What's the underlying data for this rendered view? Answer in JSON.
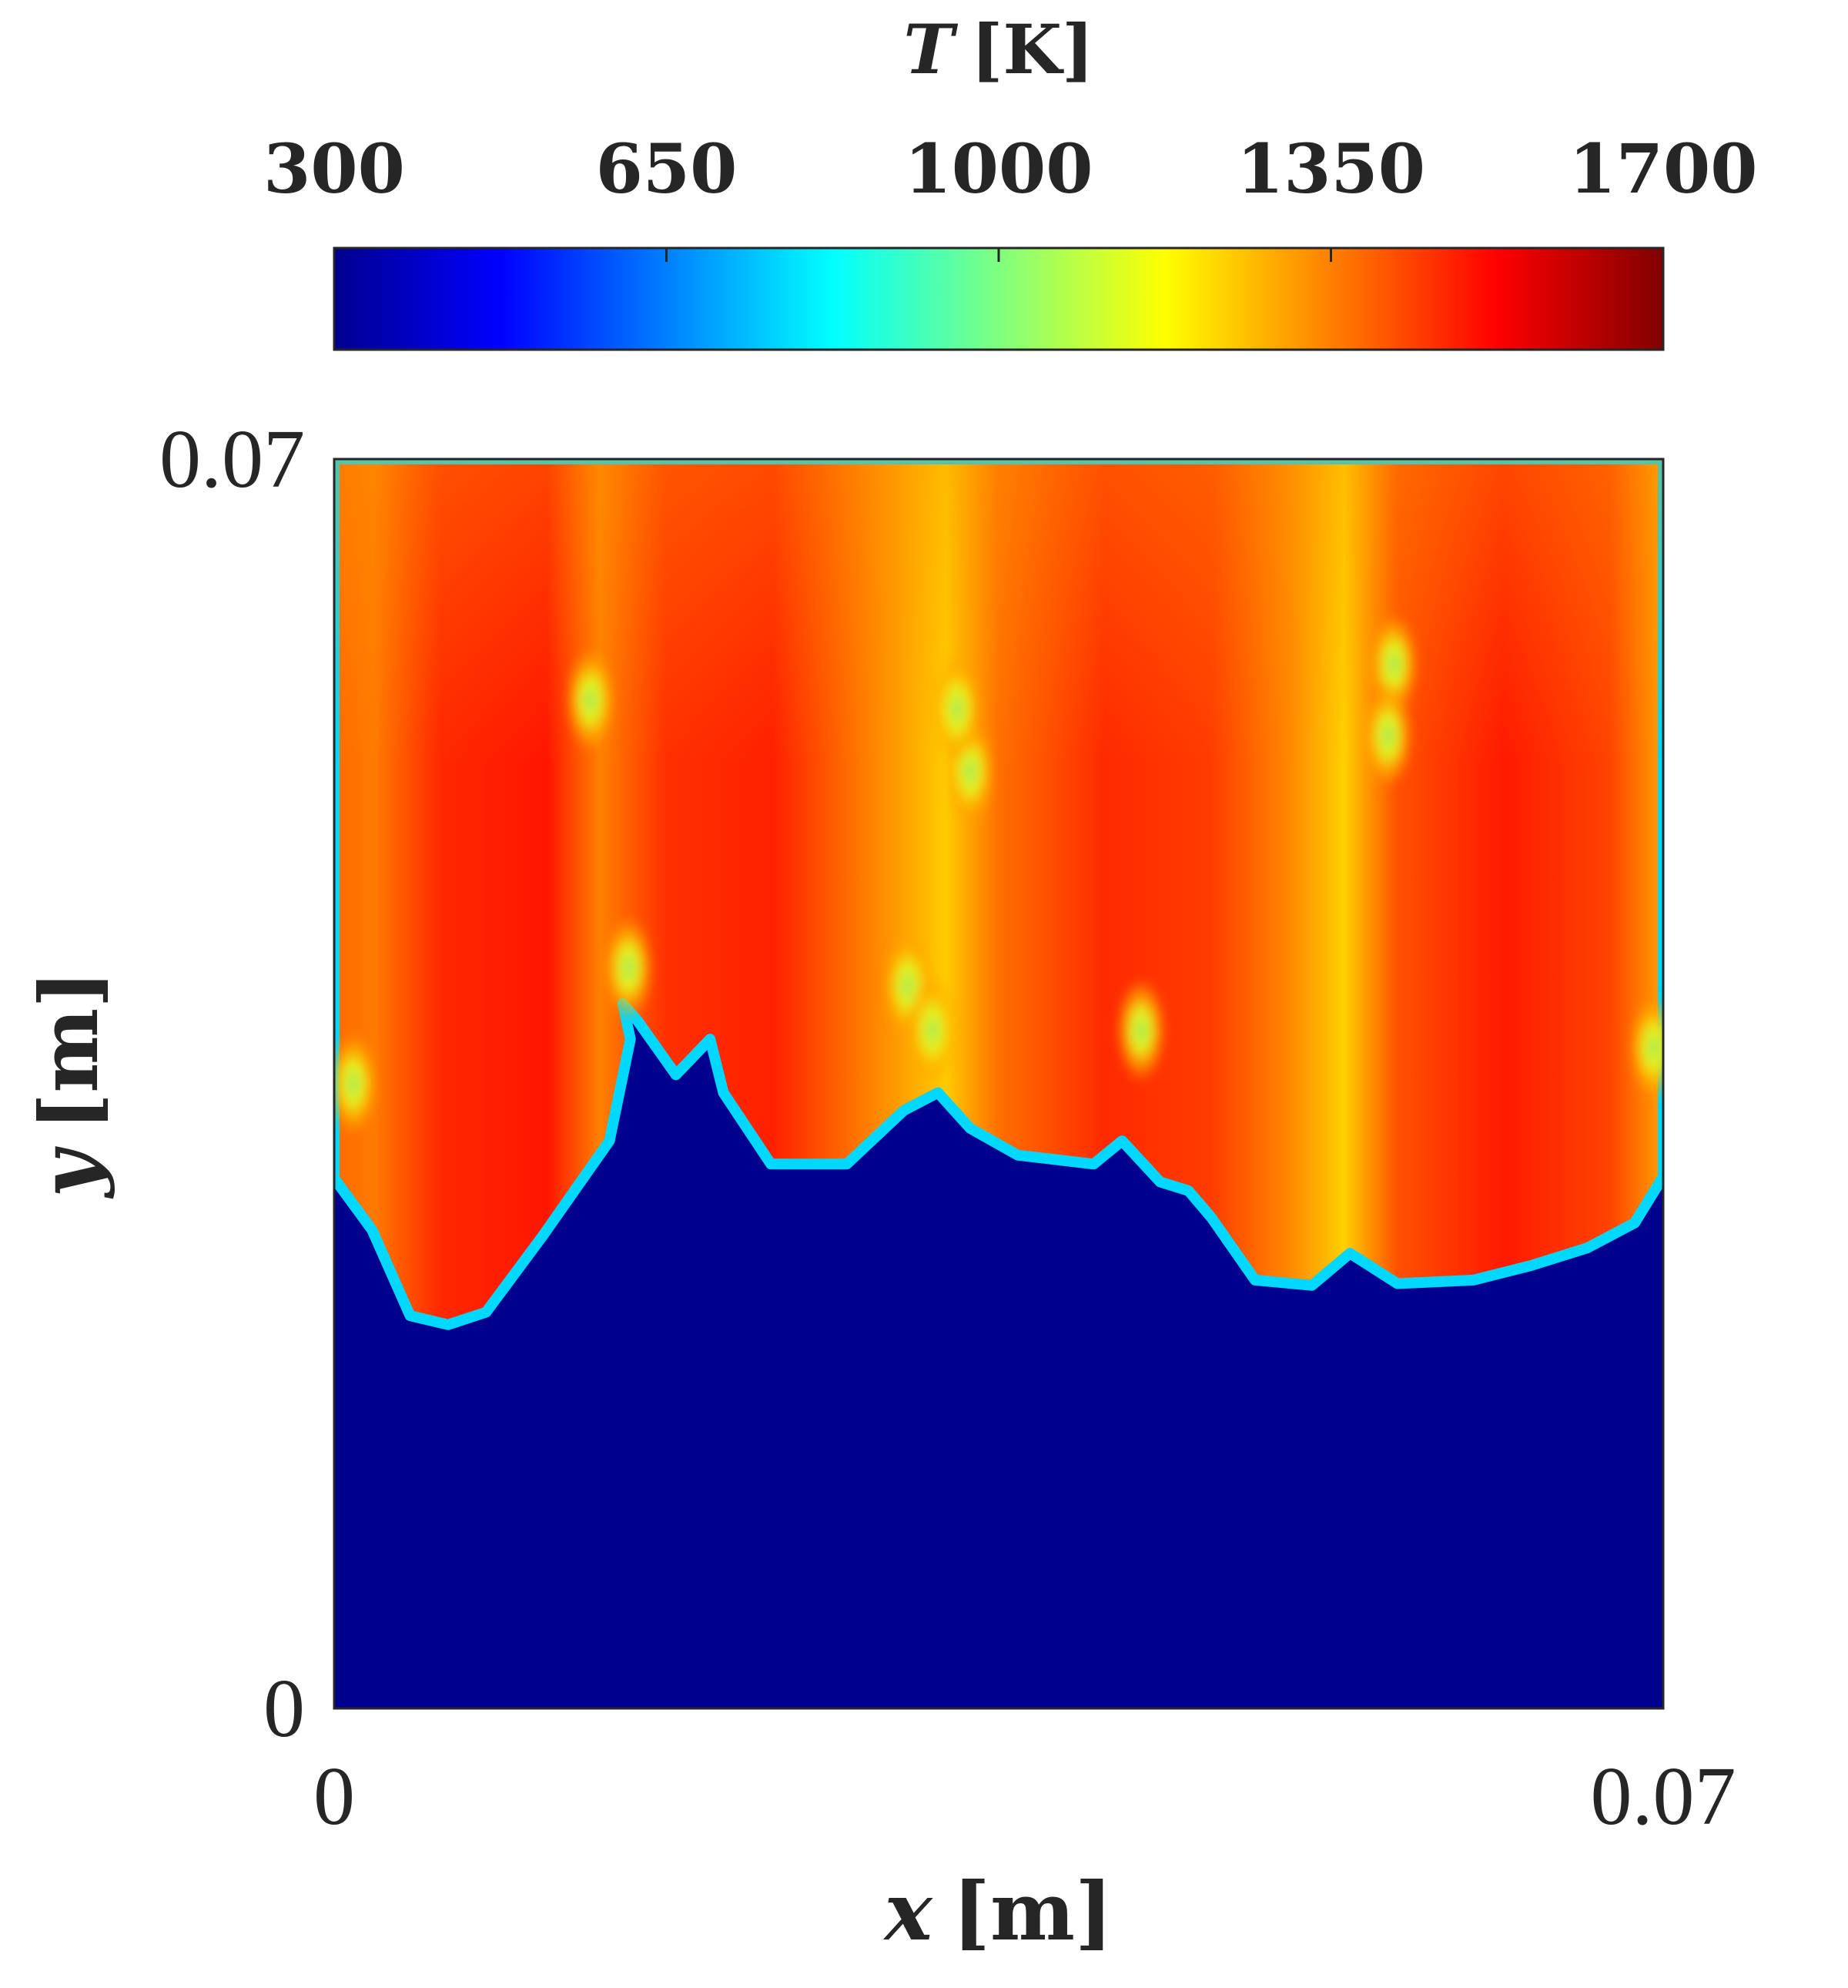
{
  "chart_data": {
    "type": "heatmap",
    "colormap": "jet",
    "colorbar": {
      "title_var": "T",
      "title_unit": "[K]",
      "range": [
        300,
        1700
      ],
      "ticks": [
        "300",
        "650",
        "1000",
        "1350",
        "1700"
      ],
      "placement": "top"
    },
    "x_axis": {
      "label_var": "x",
      "label_unit": "[m]",
      "range": [
        0,
        0.07
      ],
      "ticks": [
        "0",
        "0.07"
      ]
    },
    "y_axis": {
      "label_var": "y",
      "label_unit": "[m]",
      "range": [
        0,
        0.07
      ],
      "ticks": [
        "0",
        "0.07"
      ]
    },
    "field": {
      "unburnt_temperature": 300,
      "burnt_temperature_range": [
        1150,
        1700
      ],
      "front_height_profile": [
        [
          0.0,
          0.0297
        ],
        [
          0.002,
          0.0268
        ],
        [
          0.004,
          0.022
        ],
        [
          0.006,
          0.0215
        ],
        [
          0.008,
          0.0222
        ],
        [
          0.011,
          0.0265
        ],
        [
          0.0145,
          0.0318
        ],
        [
          0.0156,
          0.0375
        ],
        [
          0.0152,
          0.0395
        ],
        [
          0.016,
          0.0385
        ],
        [
          0.018,
          0.0355
        ],
        [
          0.0198,
          0.0375
        ],
        [
          0.0205,
          0.0345
        ],
        [
          0.023,
          0.0305
        ],
        [
          0.027,
          0.0305
        ],
        [
          0.03,
          0.0335
        ],
        [
          0.0318,
          0.0345
        ],
        [
          0.0335,
          0.0325
        ],
        [
          0.036,
          0.031
        ],
        [
          0.04,
          0.0305
        ],
        [
          0.0415,
          0.0318
        ],
        [
          0.0435,
          0.0295
        ],
        [
          0.045,
          0.029
        ],
        [
          0.0462,
          0.0275
        ],
        [
          0.0485,
          0.024
        ],
        [
          0.0515,
          0.0237
        ],
        [
          0.0535,
          0.0255
        ],
        [
          0.056,
          0.0238
        ],
        [
          0.06,
          0.024
        ],
        [
          0.063,
          0.0248
        ],
        [
          0.066,
          0.0258
        ],
        [
          0.0685,
          0.0272
        ],
        [
          0.07,
          0.0298
        ]
      ],
      "cool_pockets": [
        [
          0.0558,
          0.0585
        ],
        [
          0.0555,
          0.0545
        ],
        [
          0.0335,
          0.0525
        ],
        [
          0.0328,
          0.056
        ],
        [
          0.0155,
          0.0415
        ],
        [
          0.0302,
          0.0405
        ],
        [
          0.0315,
          0.038
        ],
        [
          0.001,
          0.035
        ],
        [
          0.0425,
          0.038
        ],
        [
          0.0695,
          0.037
        ],
        [
          0.0135,
          0.0565
        ]
      ]
    }
  }
}
